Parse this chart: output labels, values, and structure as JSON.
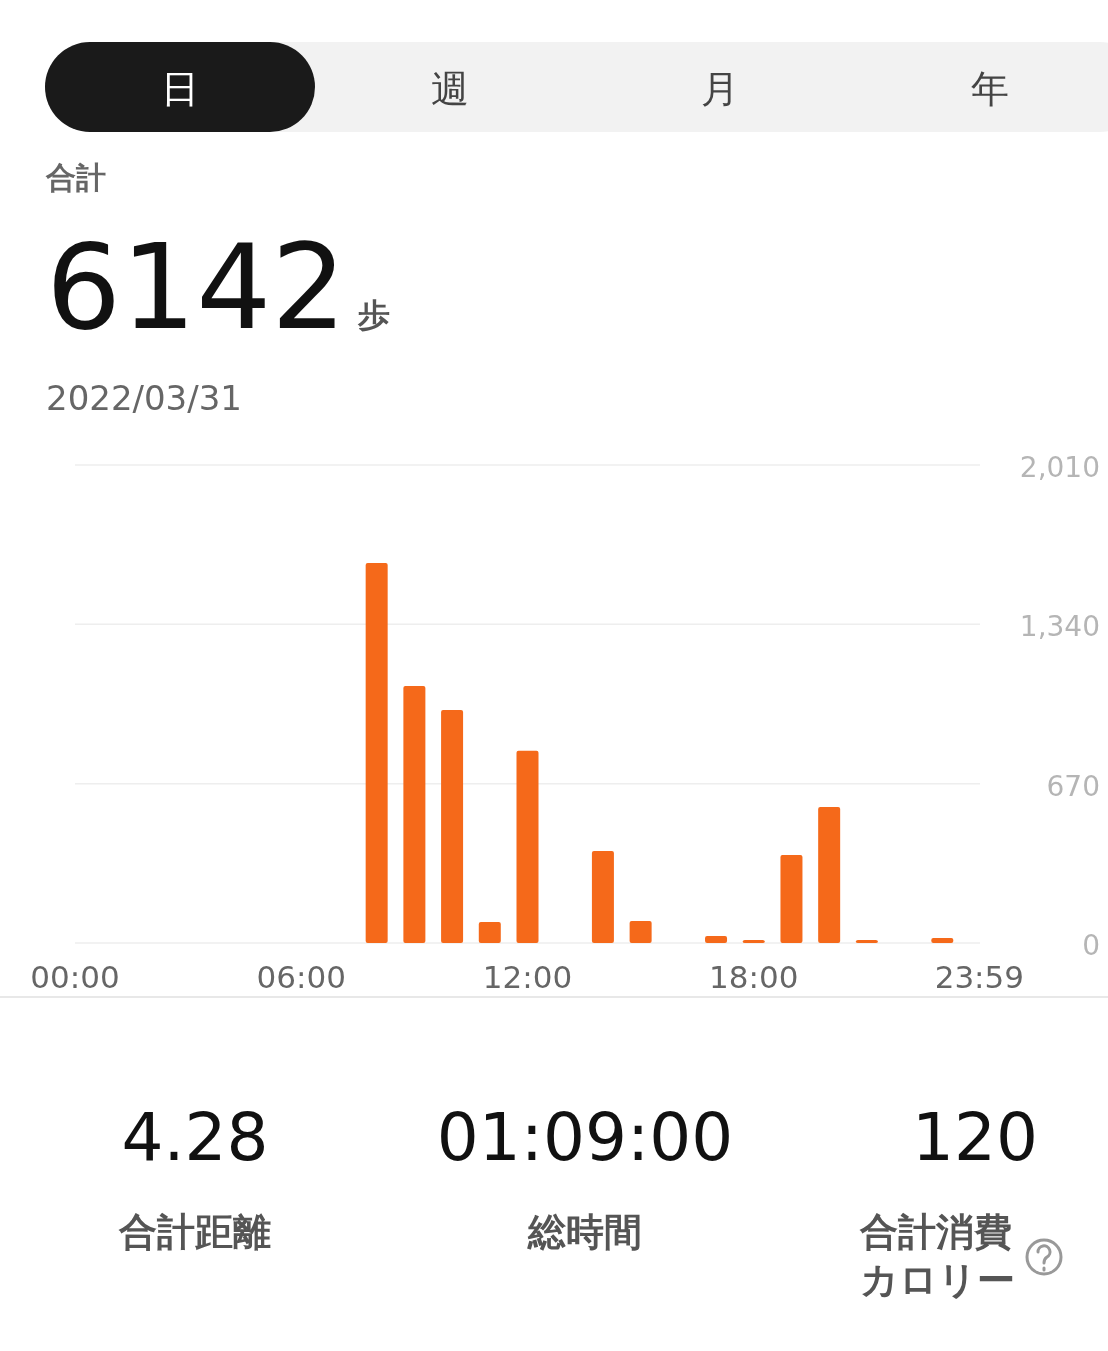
{
  "chart_data": {
    "type": "bar",
    "x": [
      0,
      1,
      2,
      3,
      4,
      5,
      6,
      7,
      8,
      9,
      10,
      11,
      12,
      13,
      14,
      15,
      16,
      17,
      18,
      19,
      20,
      21,
      22,
      23
    ],
    "values": [
      0,
      0,
      0,
      0,
      0,
      0,
      0,
      0,
      1598,
      1081,
      980,
      88,
      808,
      0,
      387,
      93,
      0,
      29,
      13,
      370,
      572,
      13,
      0,
      21
    ],
    "color": "#f5691a",
    "xlim": [
      0,
      24
    ],
    "xticks": [
      {
        "value": 0,
        "label": "00:00"
      },
      {
        "value": 6,
        "label": "06:00"
      },
      {
        "value": 12,
        "label": "12:00"
      },
      {
        "value": 18,
        "label": "18:00"
      },
      {
        "value": 23.983,
        "label": "23:59"
      }
    ],
    "ylim": [
      0,
      2010
    ],
    "yticks": [
      {
        "value": 0,
        "label": "0"
      },
      {
        "value": 670,
        "label": "670"
      },
      {
        "value": 1340,
        "label": "1,340"
      },
      {
        "value": 2010,
        "label": "2,010"
      }
    ],
    "grid": "y",
    "annotations": [
      "日",
      "週",
      "月",
      "年",
      "合計",
      "6142",
      "歩",
      "2022/03/31",
      "4.28",
      "合計距離",
      "01:09:00",
      "総時間",
      "120",
      "合計消費",
      "カロリー"
    ]
  }
}
